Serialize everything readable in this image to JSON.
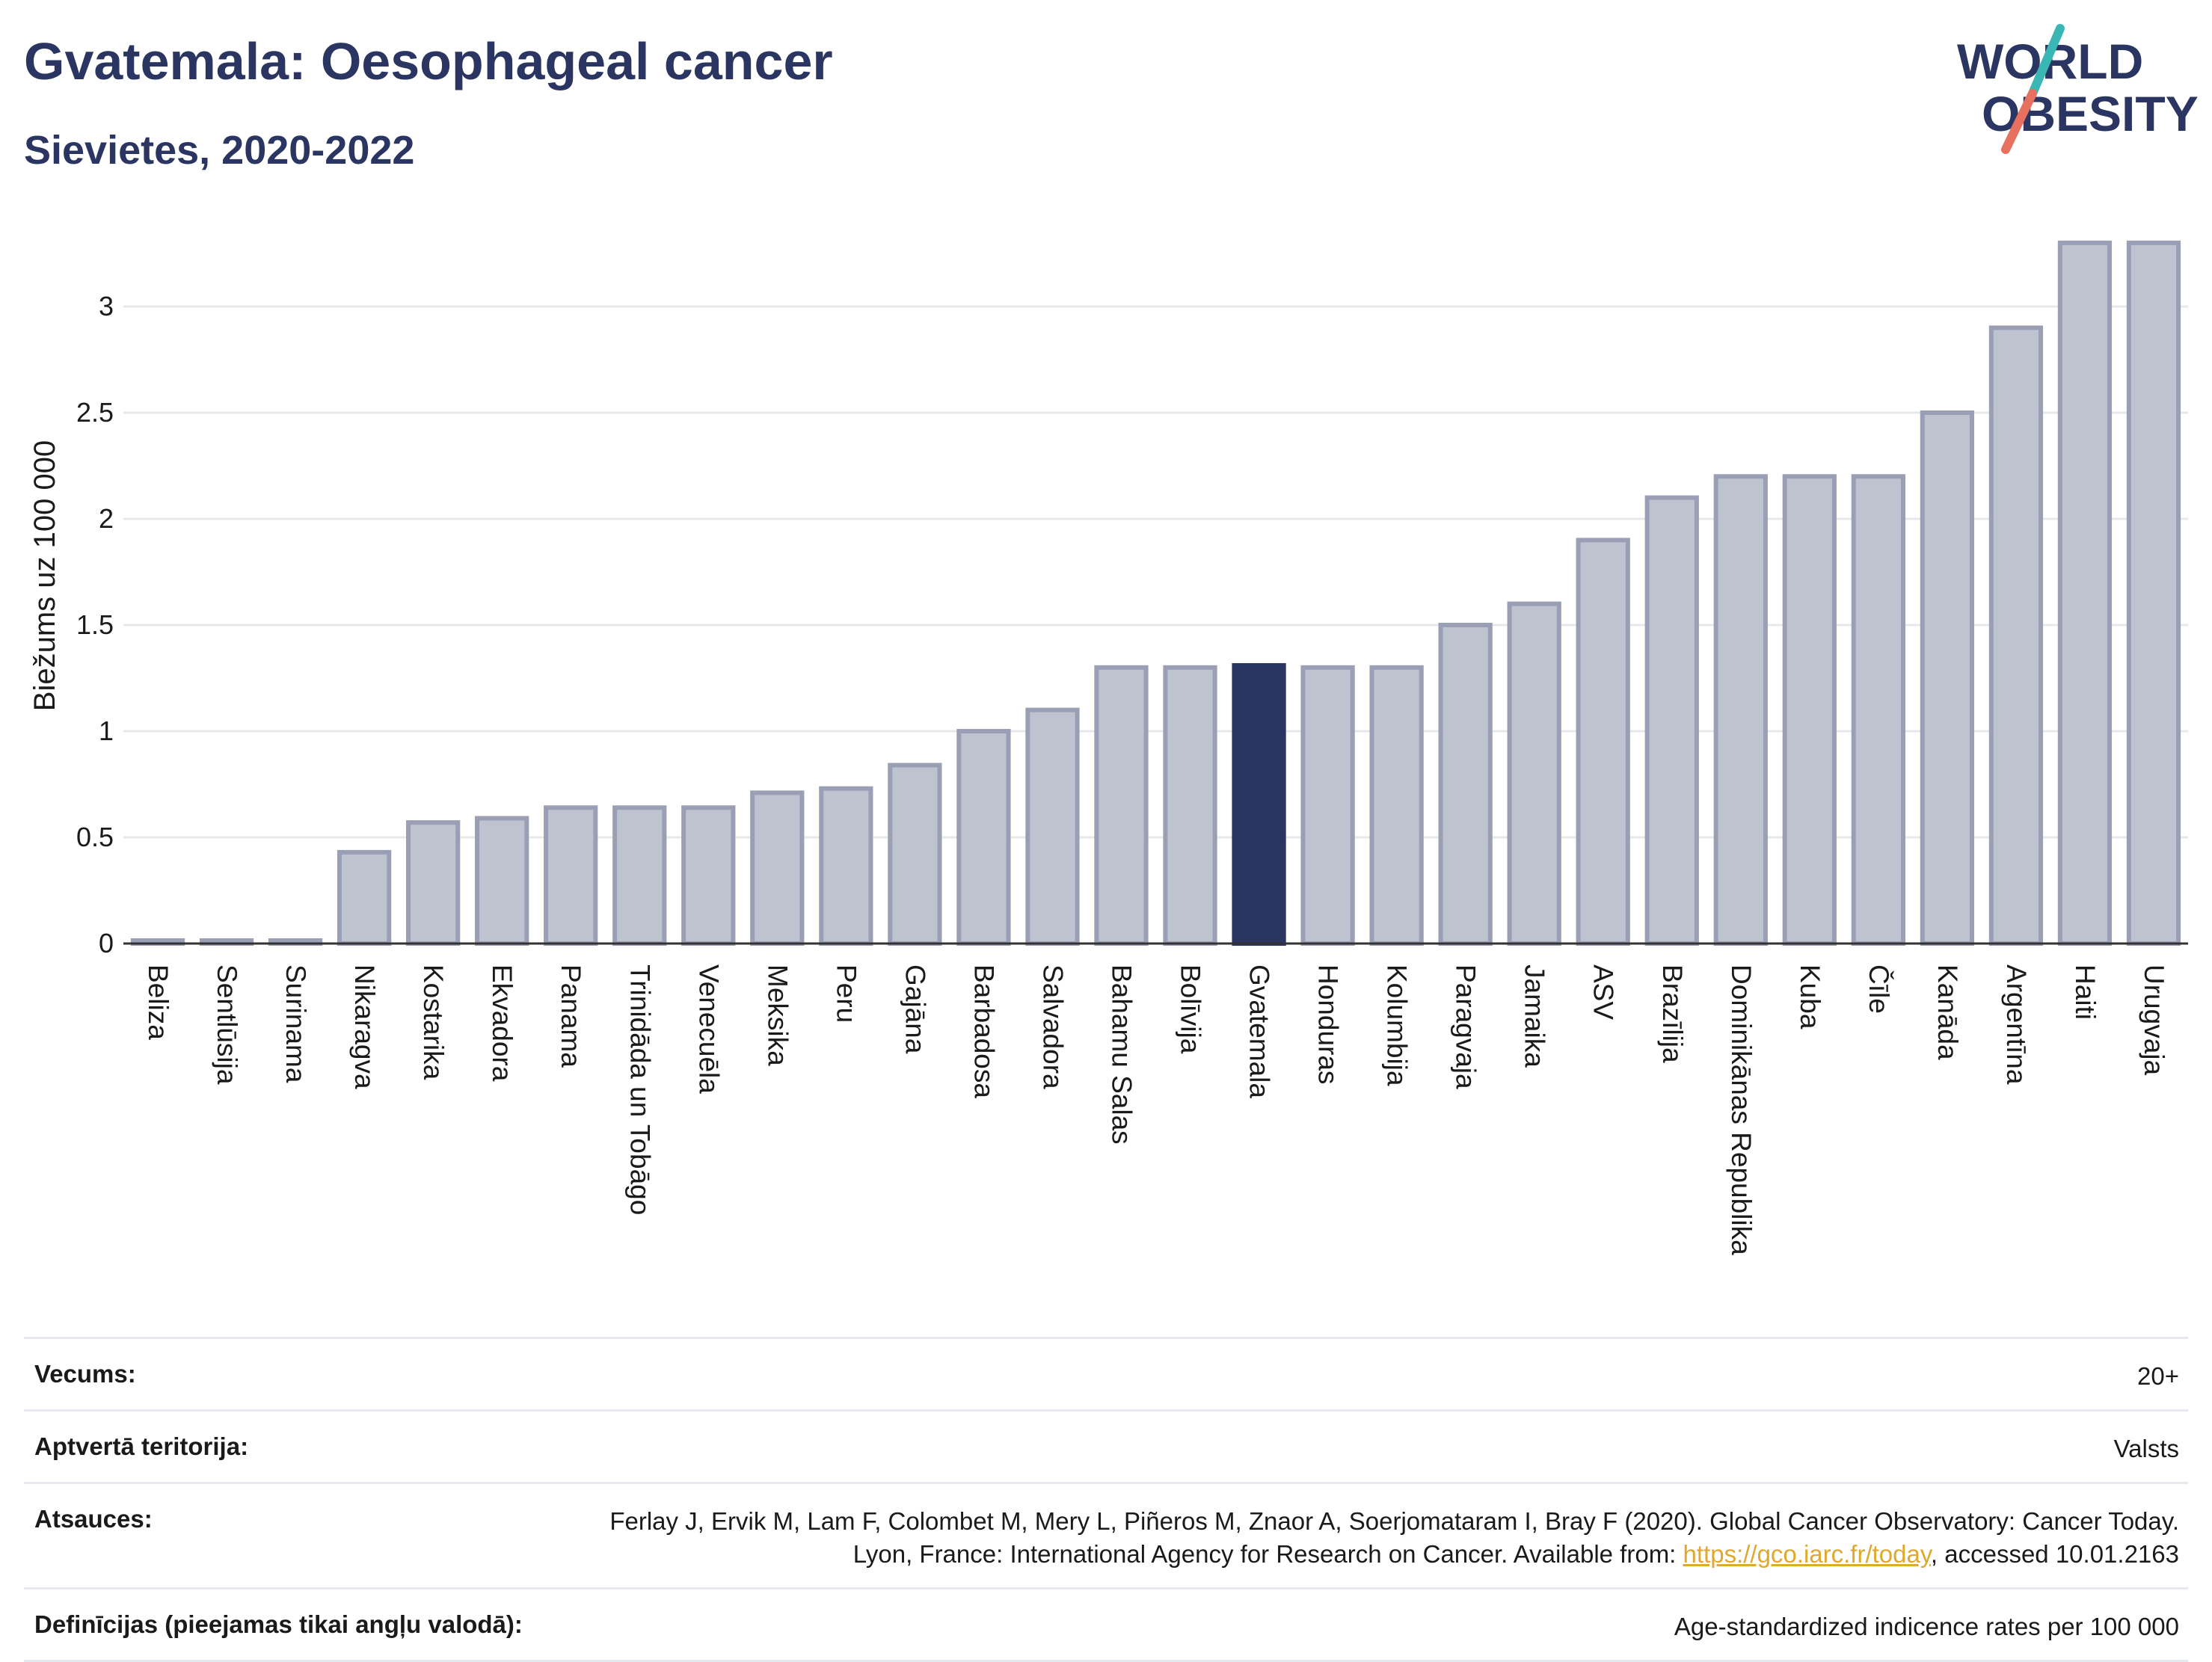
{
  "header": {
    "title": "Gvatemala: Oesophageal cancer",
    "subtitle": "Sievietes, 2020-2022"
  },
  "logo": {
    "line1": "WORLD",
    "line2": "OBESITY",
    "colors": {
      "text": "#2b3561",
      "slash_teal": "#3ab7b5",
      "slash_red": "#e8705e"
    }
  },
  "chart_data": {
    "type": "bar",
    "ylabel": "Biežums uz 100 000",
    "ylim": [
      0,
      3.3
    ],
    "yticks": [
      0,
      0.5,
      1,
      1.5,
      2,
      2.5,
      3
    ],
    "ytick_labels": [
      "0",
      "0.5",
      "1",
      "1.5",
      "2",
      "2.5",
      "3"
    ],
    "grid": true,
    "highlight": "Gvatemala",
    "colors": {
      "bar": "#bfc2cf",
      "bar_edge": "#9a9fb6",
      "highlight": "#2b3561"
    },
    "categories": [
      "Beliza",
      "Sentlūsija",
      "Surinama",
      "Nikaragva",
      "Kostarika",
      "Ekvadora",
      "Panama",
      "Trinidāda un Tobāgo",
      "Venecuēla",
      "Meksika",
      "Peru",
      "Gajāna",
      "Barbadosa",
      "Salvadora",
      "Bahamu Salas",
      "Bolīvija",
      "Gvatemala",
      "Honduras",
      "Kolumbija",
      "Paragvaja",
      "Jamaika",
      "ASV",
      "Brazīlija",
      "Dominikānas Republika",
      "Kuba",
      "Čīle",
      "Kanāda",
      "Argentīna",
      "Haiti",
      "Urugvaja"
    ],
    "values": [
      0.01,
      0.01,
      0.01,
      0.43,
      0.57,
      0.59,
      0.64,
      0.64,
      0.64,
      0.71,
      0.73,
      0.84,
      1.0,
      1.1,
      1.3,
      1.3,
      1.31,
      1.3,
      1.3,
      1.5,
      1.6,
      1.9,
      2.1,
      2.2,
      2.2,
      2.2,
      2.5,
      2.9,
      3.3,
      3.3
    ]
  },
  "info": [
    {
      "label": "Vecums:",
      "value": "20+"
    },
    {
      "label": "Aptvertā teritorija:",
      "value": "Valsts"
    },
    {
      "label": "Atsauces:",
      "value_before": "Ferlay J, Ervik M, Lam F, Colombet M, Mery L, Piñeros M, Znaor A, Soerjomataram I, Bray F (2020). Global Cancer Observatory: Cancer Today. Lyon, France: International Agency for Research on Cancer. Available from: ",
      "link": "https://gco.iarc.fr/today",
      "value_after": ", accessed 10.01.2163"
    },
    {
      "label": "Definīcijas (pieejamas tikai angļu valodā):",
      "value": "Age-standardized indicence rates per 100 000"
    }
  ]
}
